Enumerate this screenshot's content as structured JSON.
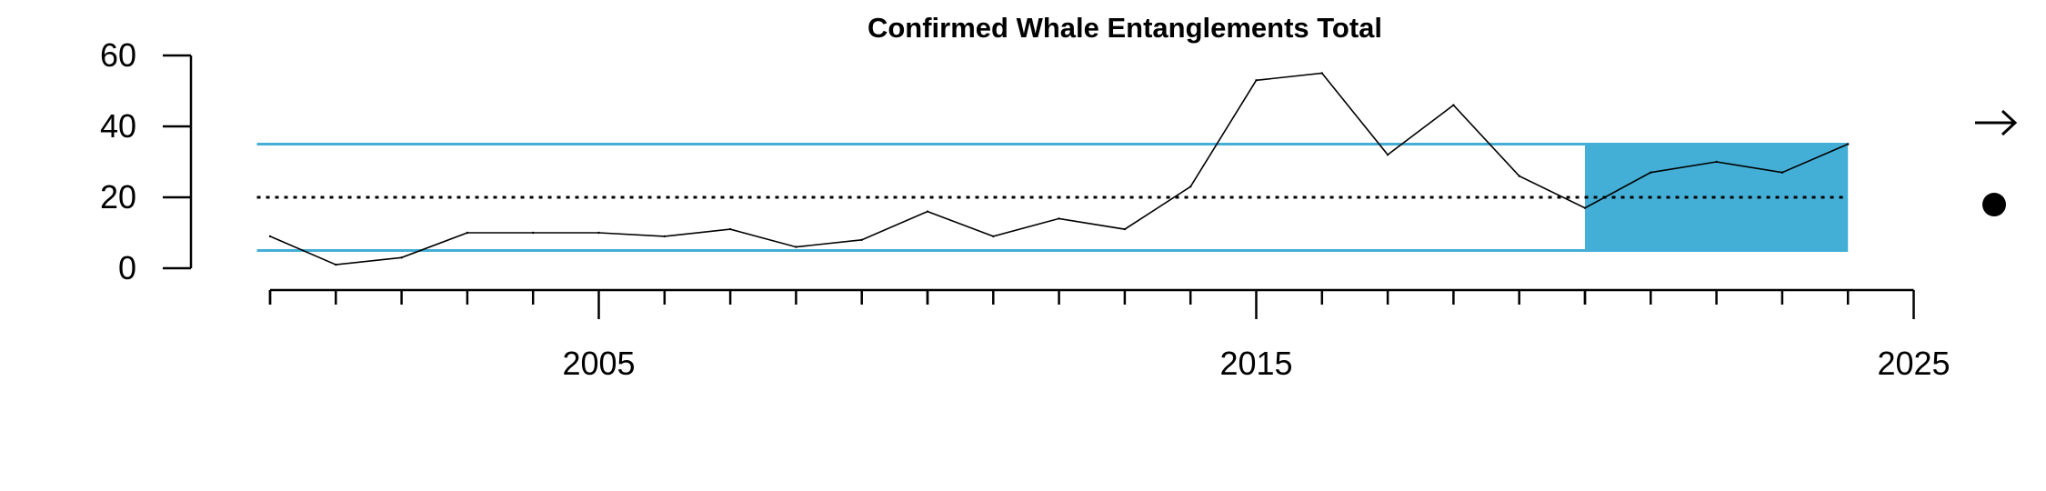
{
  "chart_data": {
    "type": "line",
    "title": "Confirmed Whale Entanglements Total",
    "xlabel": "",
    "ylabel": "",
    "xlim": [
      1999.4,
      2025
    ],
    "ylim": [
      0,
      60
    ],
    "y_ticks": [
      0,
      20,
      40,
      60
    ],
    "x_ticks_major": [
      2000,
      2005,
      2010,
      2015,
      2020,
      2025
    ],
    "x_tick_labels": [
      {
        "value": 2005,
        "label": "2005"
      },
      {
        "value": 2015,
        "label": "2015"
      },
      {
        "value": 2025,
        "label": "2025"
      }
    ],
    "x_ticks_minor_range": [
      2000,
      2024
    ],
    "grid": false,
    "series": [
      {
        "x": [
          2000,
          2001,
          2002,
          2003,
          2004,
          2005,
          2006,
          2007,
          2008,
          2009,
          2010,
          2011,
          2012,
          2013,
          2014,
          2015,
          2016,
          2017,
          2018,
          2019,
          2020,
          2021,
          2022,
          2023,
          2024
        ],
        "values": [
          9,
          1,
          3,
          10,
          10,
          10,
          9,
          11,
          6,
          8,
          16,
          9,
          14,
          11,
          23,
          53,
          55,
          32,
          46,
          26,
          17,
          27,
          30,
          27,
          35
        ]
      }
    ],
    "reference_lines": {
      "mean": 20,
      "upper": 35,
      "lower": 5,
      "mean_style": "dotted",
      "bound_color": "#44aed6"
    },
    "highlight_region": {
      "x_start": 2020,
      "x_end": 2024,
      "y_low": 5,
      "y_high": 35,
      "color": "#44afd6"
    },
    "side_indicators": {
      "trend": "arrow-right-icon",
      "status": "filled-circle-icon"
    }
  }
}
